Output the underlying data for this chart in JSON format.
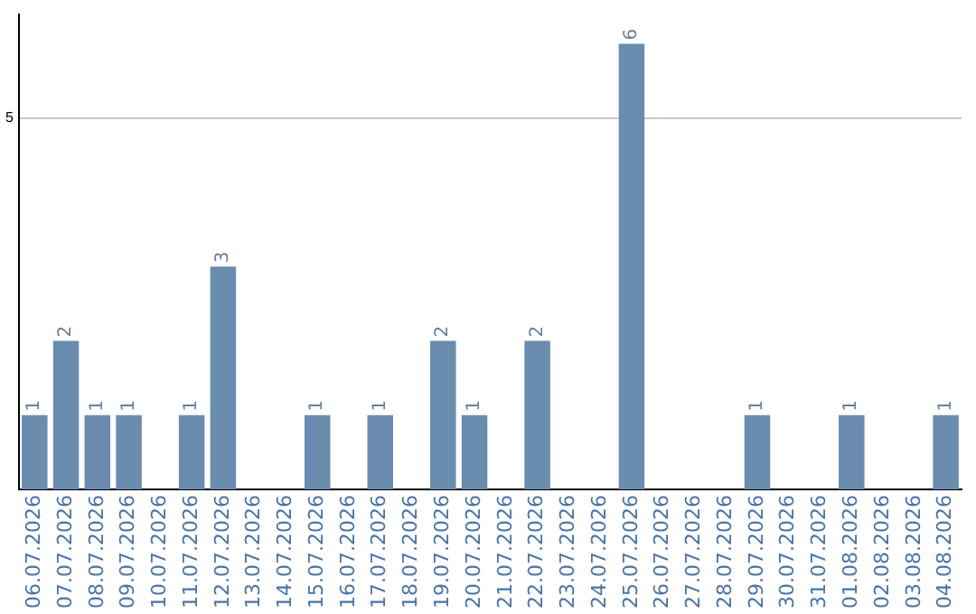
{
  "chart_data": {
    "type": "bar",
    "categories": [
      "06.07.2026",
      "07.07.2026",
      "08.07.2026",
      "09.07.2026",
      "10.07.2026",
      "11.07.2026",
      "12.07.2026",
      "13.07.2026",
      "14.07.2026",
      "15.07.2026",
      "16.07.2026",
      "17.07.2026",
      "18.07.2026",
      "19.07.2026",
      "20.07.2026",
      "21.07.2026",
      "22.07.2026",
      "23.07.2026",
      "24.07.2026",
      "25.07.2026",
      "26.07.2026",
      "27.07.2026",
      "28.07.2026",
      "29.07.2026",
      "30.07.2026",
      "31.07.2026",
      "01.08.2026",
      "02.08.2026",
      "03.08.2026",
      "04.08.2026"
    ],
    "values": [
      1,
      2,
      1,
      1,
      0,
      1,
      3,
      0,
      0,
      1,
      0,
      1,
      0,
      2,
      1,
      0,
      2,
      0,
      0,
      6,
      0,
      0,
      0,
      1,
      0,
      0,
      1,
      0,
      0,
      1
    ],
    "value_labels": [
      "1",
      "2",
      "1",
      "1",
      null,
      "1",
      "3",
      null,
      null,
      "1",
      null,
      "1",
      null,
      "2",
      "1",
      null,
      "2",
      null,
      null,
      "6",
      null,
      null,
      null,
      "1",
      null,
      null,
      "1",
      null,
      null,
      "1"
    ],
    "color": "#6a8caf",
    "ylim": [
      0,
      6.4
    ],
    "yticks": [
      5
    ],
    "grid": "y",
    "legend": false
  }
}
